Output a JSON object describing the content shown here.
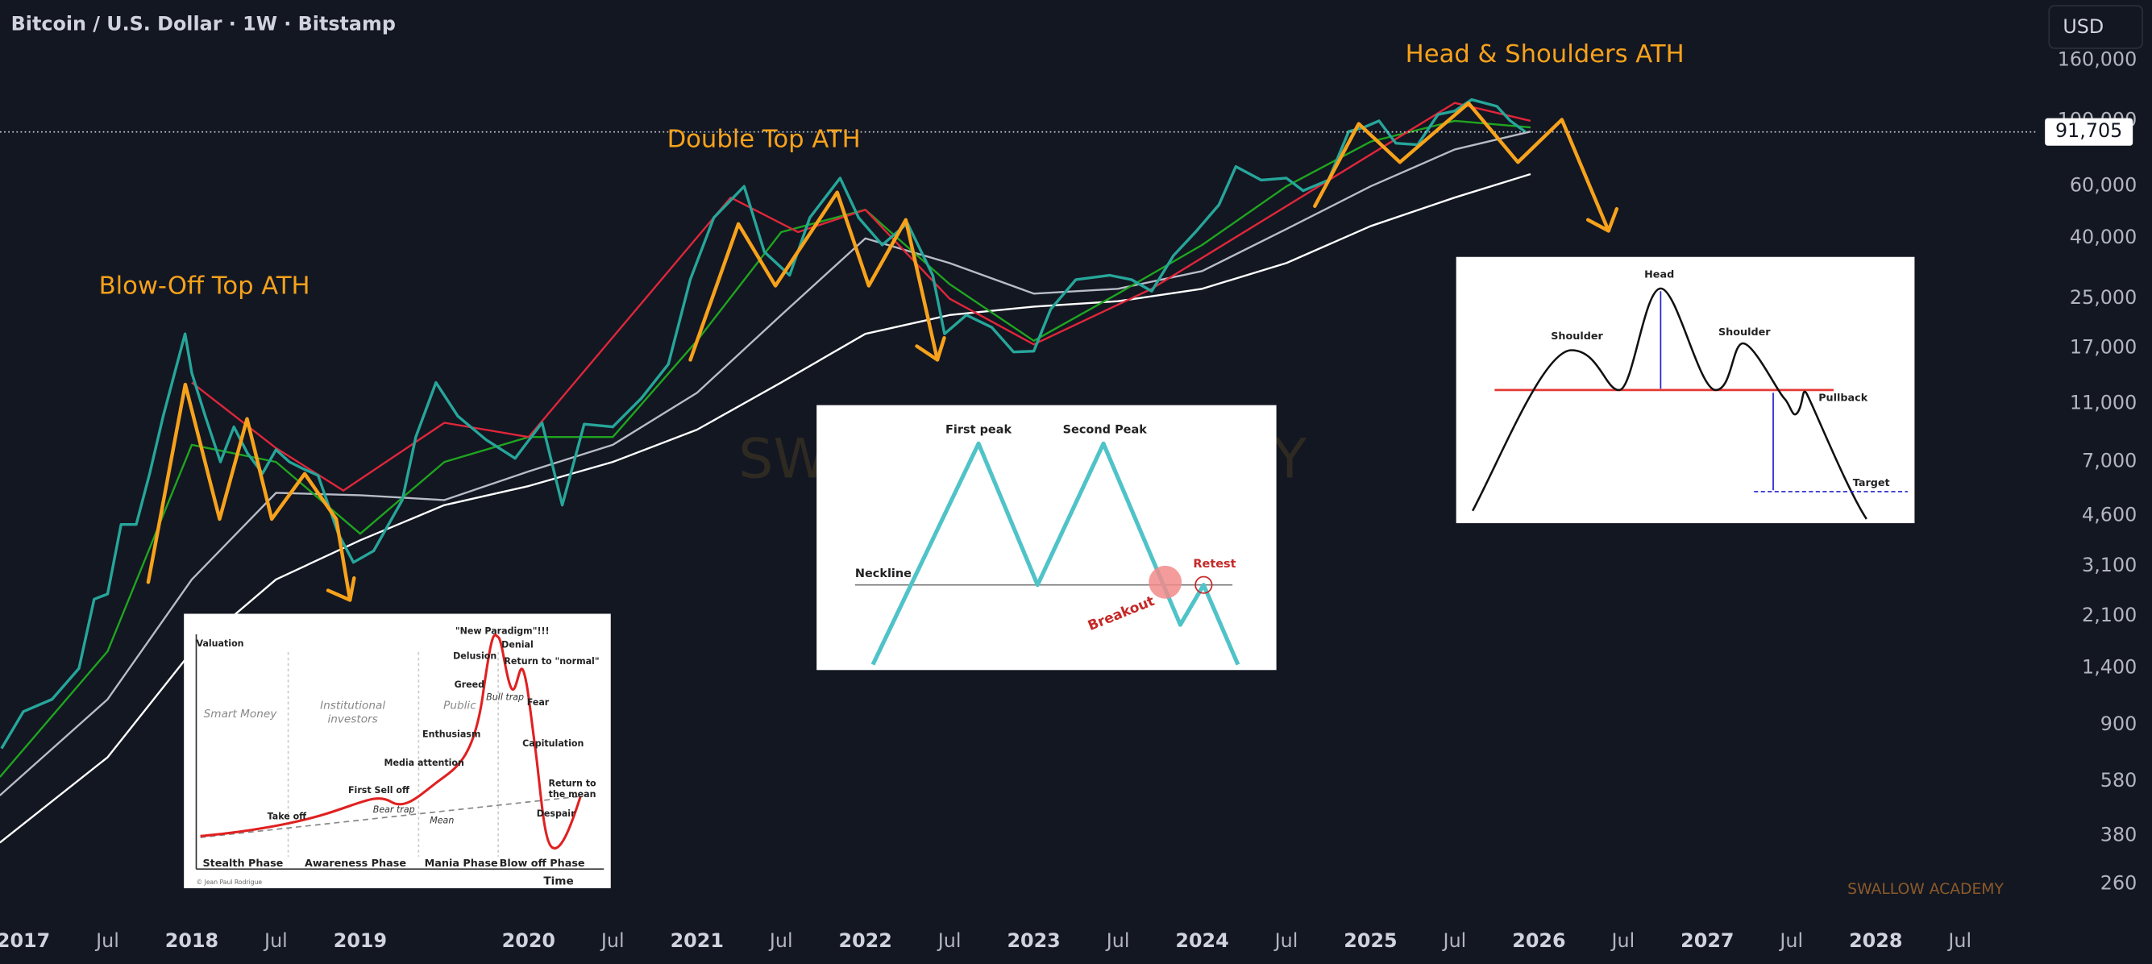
{
  "header": {
    "title": "Bitcoin / U.S. Dollar · 1W · Bitstamp",
    "currency": "USD"
  },
  "watermark": "SWALLOW ACADEMY",
  "chart_data": {
    "type": "line",
    "log_scale": true,
    "grid": false,
    "xlim": [
      2016.861,
      2028.964
    ],
    "ylim": [
      208,
      256000
    ],
    "xticks": [
      2017,
      {
        "value": 2017.5,
        "label": "Jul"
      },
      2018,
      {
        "value": 2018.5,
        "label": "Jul"
      },
      2019,
      2020,
      {
        "value": 2020.5,
        "label": "Jul"
      },
      2021,
      {
        "value": 2021.5,
        "label": "Jul"
      },
      2022,
      {
        "value": 2022.5,
        "label": "Jul"
      },
      2023,
      {
        "value": 2023.5,
        "label": "Jul"
      },
      2024,
      {
        "value": 2024.5,
        "label": "Jul"
      },
      2025,
      {
        "value": 2025.5,
        "label": "Jul"
      },
      2026,
      {
        "value": 2026.5,
        "label": "Jul"
      },
      2027,
      {
        "value": 2027.5,
        "label": "Jul"
      },
      2028,
      {
        "value": 2028.5,
        "label": "Jul"
      }
    ],
    "yticks": [
      260,
      380,
      580,
      900,
      {
        "value": 1400,
        "label": "1,400"
      },
      {
        "value": 2100,
        "label": "2,100"
      },
      {
        "value": 3100,
        "label": "3,100"
      },
      {
        "value": 4600,
        "label": "4,600"
      },
      {
        "value": 7000,
        "label": "7,000"
      },
      {
        "value": 11000,
        "label": "11,000"
      },
      {
        "value": 17000,
        "label": "17,000"
      },
      {
        "value": 25000,
        "label": "25,000"
      },
      {
        "value": 40000,
        "label": "40,000"
      },
      {
        "value": 60000,
        "label": "60,000"
      },
      {
        "value": 100000,
        "label": "100,000"
      },
      {
        "value": 160000,
        "label": "160,000"
      }
    ],
    "last_price": {
      "value": 91705,
      "label": "91,705"
    },
    "annotations": [
      "Blow-Off Top ATH",
      "Double Top ATH",
      "Head & Shoulders ATH"
    ],
    "series": [
      {
        "color": "#ffffff",
        "x": [
          2016.86,
          2017.5,
          2018.0,
          2018.5,
          2019.0,
          2019.5,
          2020.0,
          2020.5,
          2021.0,
          2021.5,
          2022.0,
          2022.5,
          2023.0,
          2023.5,
          2024.0,
          2024.5,
          2025.0,
          2025.5,
          2025.95
        ],
        "values": [
          360,
          700,
          1600,
          2800,
          3800,
          5000,
          5800,
          7000,
          9000,
          13000,
          19000,
          22000,
          23500,
          24500,
          27000,
          33000,
          44000,
          55000,
          66000
        ]
      },
      {
        "color": "#b8bcc6",
        "x": [
          2016.86,
          2017.5,
          2018.0,
          2018.5,
          2019.0,
          2019.5,
          2020.0,
          2020.5,
          2021.0,
          2021.5,
          2022.0,
          2022.5,
          2023.0,
          2023.5,
          2024.0,
          2024.5,
          2025.0,
          2025.5,
          2025.95
        ],
        "values": [
          520,
          1100,
          2800,
          5500,
          5400,
          5200,
          6500,
          8000,
          12000,
          22000,
          40000,
          33000,
          26000,
          27000,
          31000,
          43000,
          60000,
          80000,
          92000
        ]
      },
      {
        "color": "#1fa51f",
        "x": [
          2016.86,
          2017.5,
          2018.0,
          2018.5,
          2019.0,
          2019.5,
          2020.0,
          2020.5,
          2021.0,
          2021.5,
          2022.0,
          2022.5,
          2023.0,
          2023.5,
          2024.0,
          2024.5,
          2025.0,
          2025.5,
          2025.95
        ],
        "values": [
          600,
          1600,
          8000,
          7000,
          4000,
          7000,
          8500,
          8500,
          18000,
          42000,
          50000,
          28000,
          18000,
          26000,
          38000,
          60000,
          85000,
          100000,
          95000
        ]
      },
      {
        "color": "#e0263a",
        "x": [
          2018.0,
          2018.5,
          2018.9,
          2019.5,
          2020.0,
          2021.2,
          2021.6,
          2022.0,
          2022.5,
          2023.0,
          2023.7,
          2025.5,
          2025.95
        ],
        "values": [
          13000,
          7800,
          5600,
          9500,
          8500,
          55000,
          42000,
          50000,
          25000,
          17500,
          27000,
          115000,
          100000
        ]
      },
      {
        "color": "#26a69a",
        "x": [
          2016.87,
          2017.0,
          2017.17,
          2017.33,
          2017.42,
          2017.5,
          2017.58,
          2017.67,
          2017.75,
          2017.83,
          2017.96,
          2018.0,
          2018.08,
          2018.17,
          2018.25,
          2018.33,
          2018.42,
          2018.5,
          2018.58,
          2018.67,
          2018.75,
          2018.87,
          2018.96,
          2019.08,
          2019.25,
          2019.33,
          2019.45,
          2019.58,
          2019.75,
          2019.92,
          2020.08,
          2020.2,
          2020.33,
          2020.5,
          2020.67,
          2020.83,
          2020.96,
          2021.1,
          2021.28,
          2021.4,
          2021.55,
          2021.67,
          2021.85,
          2021.96,
          2022.1,
          2022.25,
          2022.4,
          2022.47,
          2022.6,
          2022.75,
          2022.88,
          2023.0,
          2023.1,
          2023.25,
          2023.45,
          2023.58,
          2023.7,
          2023.83,
          2023.96,
          2024.1,
          2024.2,
          2024.35,
          2024.5,
          2024.6,
          2024.75,
          2024.87,
          2024.96,
          2025.05,
          2025.15,
          2025.28,
          2025.4,
          2025.5,
          2025.6,
          2025.75,
          2025.83,
          2025.92
        ],
        "values": [
          750,
          1000,
          1100,
          1400,
          2400,
          2500,
          4300,
          4300,
          6400,
          10000,
          19000,
          14000,
          10000,
          7000,
          9200,
          7500,
          6400,
          7700,
          7000,
          6600,
          6300,
          4000,
          3200,
          3500,
          5200,
          8500,
          13000,
          10000,
          8300,
          7200,
          9500,
          5000,
          9400,
          9200,
          11500,
          15000,
          29000,
          47000,
          60000,
          36000,
          30000,
          47000,
          64000,
          47000,
          38000,
          45000,
          30000,
          19000,
          22000,
          20000,
          16500,
          16600,
          23000,
          29000,
          30000,
          29000,
          26500,
          35000,
          42000,
          52000,
          70000,
          63000,
          64000,
          58000,
          63000,
          92000,
          95000,
          100000,
          84000,
          83000,
          105000,
          108000,
          118000,
          112000,
          100000,
          91705
        ]
      }
    ]
  },
  "insets": {
    "cycle": {
      "y_label": "Valuation",
      "x_label": "Time",
      "credit": "© Jean Paul Rodrigue",
      "smart_money": "Smart Money",
      "institutional": [
        "Institutional",
        "investors"
      ],
      "public": "Public",
      "points": [
        "Take off",
        "First Sell off",
        "Bear trap",
        "Mean",
        "Media attention",
        "Enthusiasm",
        "Greed",
        "Delusion",
        "\"New Paradigm\"!!!",
        "Denial",
        "Return to \"normal\"",
        "Bull trap",
        "Fear",
        "Capitulation",
        "Despair"
      ],
      "return_mean": [
        "Return to",
        "the mean"
      ],
      "phases": [
        "Stealth Phase",
        "Awareness Phase",
        "Mania Phase",
        "Blow off Phase"
      ]
    },
    "double_top": {
      "first": "First peak",
      "second": "Second Peak",
      "neckline": "Neckline",
      "retest": "Retest",
      "breakout": "Breakout"
    },
    "head_shoulders": {
      "head": "Head",
      "left": "Shoulder",
      "right": "Shoulder",
      "pullback": "Pullback",
      "target": "Target"
    }
  }
}
